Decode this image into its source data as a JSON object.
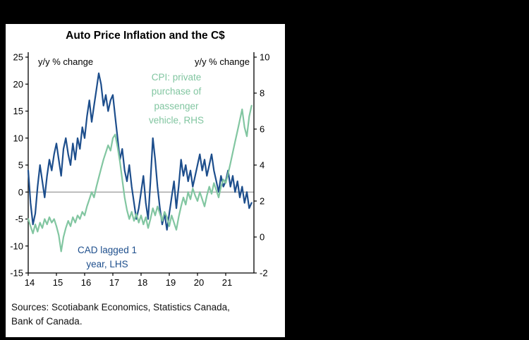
{
  "panel": {
    "title": "Auto Price Inflation and the C$",
    "sources_line1": "Sources: Scotiabank Economics, Statistics Canada,",
    "sources_line2": "Bank of Canada."
  },
  "colors": {
    "cad_blue": "#1d4e8c",
    "cpi_green": "#82c6a1",
    "zero_line": "#808080",
    "axis": "#000000",
    "panel_bg": "#ffffff",
    "page_bg": "#000000"
  },
  "chart_data": {
    "type": "line",
    "title": "Auto Price Inflation and the C$",
    "x_start_year": 2014,
    "x_end_year": 2022,
    "x_ticks": [
      14,
      15,
      16,
      17,
      18,
      19,
      20,
      21
    ],
    "left_axis": {
      "label": "y/y % change",
      "ylim": [
        -15,
        25
      ],
      "ticks": [
        25,
        20,
        15,
        10,
        5,
        0,
        -5,
        -10,
        -15
      ]
    },
    "right_axis": {
      "label": "y/y % change",
      "ylim": [
        -2,
        10
      ],
      "ticks": [
        10,
        8,
        6,
        4,
        2,
        0,
        -2
      ]
    },
    "grid": false,
    "series": [
      {
        "name": "CAD lagged 1 year, LHS",
        "axis": "left",
        "color": "#1d4e8c",
        "values": [
          4,
          -2,
          -6,
          -4,
          1,
          5,
          2,
          -1,
          3,
          6,
          4,
          7,
          9,
          6,
          3,
          8,
          10,
          7,
          5,
          9,
          6,
          10,
          8,
          12,
          10,
          14,
          17,
          13,
          16,
          19,
          22,
          20,
          16,
          18,
          15,
          17,
          18,
          14,
          10,
          6,
          8,
          4,
          2,
          5,
          1,
          -2,
          -5,
          -3,
          0,
          3,
          -2,
          -5,
          2,
          10,
          6,
          1,
          -3,
          -6,
          -4,
          -7,
          -4,
          -1,
          2,
          -3,
          1,
          6,
          3,
          5,
          2,
          4,
          1,
          3,
          5,
          7,
          4,
          6,
          3,
          5,
          7,
          4,
          2,
          0,
          3,
          1,
          2,
          4,
          1,
          3,
          0,
          2,
          -1,
          1,
          -2,
          0,
          -3,
          -2
        ]
      },
      {
        "name": "CPI: private purchase of passenger vehicle, RHS",
        "axis": "right",
        "color": "#82c6a1",
        "values": [
          1.0,
          0.6,
          0.2,
          0.7,
          0.3,
          0.8,
          0.5,
          1.0,
          0.7,
          1.1,
          0.8,
          1.0,
          0.6,
          0.1,
          -0.8,
          0.0,
          0.5,
          0.9,
          0.6,
          1.1,
          0.8,
          1.2,
          1.0,
          1.4,
          1.2,
          1.7,
          2.1,
          2.5,
          2.2,
          2.8,
          3.3,
          3.8,
          4.3,
          4.7,
          5.1,
          4.8,
          5.5,
          5.7,
          5.0,
          4.2,
          3.2,
          2.2,
          1.5,
          1.0,
          1.4,
          0.9,
          1.3,
          0.8,
          1.2,
          0.7,
          1.1,
          0.5,
          1.0,
          1.6,
          1.2,
          1.7,
          1.3,
          0.9,
          1.4,
          1.1,
          0.6,
          1.2,
          0.8,
          0.4,
          1.1,
          1.7,
          2.2,
          1.8,
          2.5,
          2.1,
          2.7,
          2.3,
          2.0,
          2.5,
          2.1,
          1.7,
          2.3,
          2.8,
          2.4,
          3.0,
          2.6,
          2.2,
          2.8,
          3.2,
          3.0,
          3.5,
          4.1,
          4.7,
          5.3,
          5.9,
          6.5,
          7.1,
          6.1,
          5.6,
          6.7,
          7.3
        ]
      }
    ],
    "annotations": [
      {
        "text": "CPI: private purchase of passenger vehicle, RHS",
        "lines": [
          "CPI: private",
          "purchase of",
          "passenger",
          "vehicle, RHS"
        ],
        "color": "#82c6a1",
        "position": "upper-right"
      },
      {
        "text": "CAD lagged 1 year, LHS",
        "lines": [
          "CAD lagged 1",
          "year, LHS"
        ],
        "color": "#1d4e8c",
        "position": "lower-left"
      }
    ]
  }
}
